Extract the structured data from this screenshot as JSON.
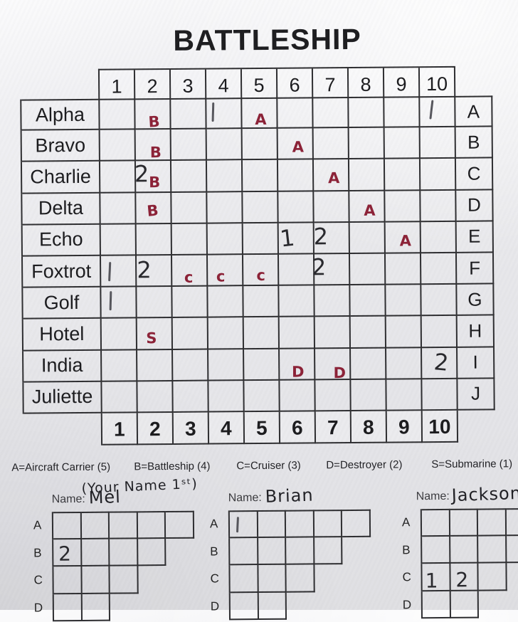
{
  "title": "BATTLESHIP",
  "colors": {
    "line": "#2e2e31",
    "ink_red": "#8c2137",
    "pencil": "#28282d"
  },
  "main_grid": {
    "col_headers": [
      "1",
      "2",
      "3",
      "4",
      "5",
      "6",
      "7",
      "8",
      "9",
      "10"
    ],
    "col_footers": [
      "1",
      "2",
      "3",
      "4",
      "5",
      "6",
      "7",
      "8",
      "9",
      "10"
    ],
    "rows": [
      {
        "label": "Alpha",
        "letter": "A"
      },
      {
        "label": "Bravo",
        "letter": "B"
      },
      {
        "label": "Charlie",
        "letter": "C"
      },
      {
        "label": "Delta",
        "letter": "D"
      },
      {
        "label": "Echo",
        "letter": "E"
      },
      {
        "label": "Foxtrot",
        "letter": "F"
      },
      {
        "label": "Golf",
        "letter": "G"
      },
      {
        "label": "Hotel",
        "letter": "H"
      },
      {
        "label": "India",
        "letter": "I"
      },
      {
        "label": "Juliette",
        "letter": "J"
      }
    ],
    "marks": [
      {
        "row": "A",
        "col": 2,
        "text": "B",
        "ink": "red",
        "fx": 0.56,
        "fy": 0.75,
        "rot": -3
      },
      {
        "row": "A",
        "col": 4,
        "text": "|",
        "ink": "pencil",
        "fx": 0.22,
        "fy": 0.45,
        "rot": 2
      },
      {
        "row": "A",
        "col": 5,
        "text": "A",
        "ink": "red",
        "fx": 0.56,
        "fy": 0.7
      },
      {
        "row": "A",
        "col": 10,
        "text": "|",
        "ink": "pencil",
        "fx": 0.36,
        "fy": 0.44,
        "rot": 7
      },
      {
        "row": "B",
        "col": 2,
        "text": "B",
        "ink": "red",
        "fx": 0.6,
        "fy": 0.72
      },
      {
        "row": "B",
        "col": 6,
        "text": "A",
        "ink": "red",
        "fx": 0.6,
        "fy": 0.58
      },
      {
        "row": "C",
        "col": 2,
        "text": "2",
        "ink": "pencil",
        "fx": 0.2,
        "fy": 0.4
      },
      {
        "row": "C",
        "col": 2,
        "text": "B",
        "ink": "red",
        "fx": 0.56,
        "fy": 0.68
      },
      {
        "row": "C",
        "col": 7,
        "text": "A",
        "ink": "red",
        "fx": 0.6,
        "fy": 0.57
      },
      {
        "row": "D",
        "col": 2,
        "text": "B",
        "ink": "red",
        "fx": 0.5,
        "fy": 0.58,
        "rot": -5
      },
      {
        "row": "D",
        "col": 8,
        "text": "A",
        "ink": "red",
        "fx": 0.6,
        "fy": 0.62
      },
      {
        "row": "E",
        "col": 6,
        "text": "1",
        "ink": "pencil",
        "fx": 0.27,
        "fy": 0.48,
        "rot": -6
      },
      {
        "row": "E",
        "col": 7,
        "text": "2",
        "ink": "pencil",
        "fx": 0.22,
        "fy": 0.44
      },
      {
        "row": "E",
        "col": 9,
        "text": "A",
        "ink": "red",
        "fx": 0.6,
        "fy": 0.6
      },
      {
        "row": "F",
        "col": 1,
        "text": "|",
        "ink": "pencil",
        "fx": 0.27,
        "fy": 0.5
      },
      {
        "row": "F",
        "col": 2,
        "text": "2",
        "ink": "pencil",
        "fx": 0.25,
        "fy": 0.45
      },
      {
        "row": "F",
        "col": 3,
        "text": "c",
        "ink": "red",
        "fx": 0.5,
        "fy": 0.7
      },
      {
        "row": "F",
        "col": 4,
        "text": "c",
        "ink": "red",
        "fx": 0.4,
        "fy": 0.68
      },
      {
        "row": "F",
        "col": 5,
        "text": "c",
        "ink": "red",
        "fx": 0.53,
        "fy": 0.66
      },
      {
        "row": "F",
        "col": 7,
        "text": "2",
        "ink": "pencil",
        "fx": 0.16,
        "fy": 0.4
      },
      {
        "row": "G",
        "col": 1,
        "text": "|",
        "ink": "pencil",
        "fx": 0.3,
        "fy": 0.42,
        "rot": 2
      },
      {
        "row": "H",
        "col": 2,
        "text": "S",
        "ink": "red",
        "fx": 0.44,
        "fy": 0.62
      },
      {
        "row": "I",
        "col": 6,
        "text": "D",
        "ink": "red",
        "fx": 0.55,
        "fy": 0.74
      },
      {
        "row": "I",
        "col": 7,
        "text": "D",
        "ink": "red",
        "fx": 0.72,
        "fy": 0.78
      },
      {
        "row": "I",
        "col": 10,
        "text": "2",
        "ink": "pencil",
        "fx": 0.58,
        "fy": 0.46,
        "rot": 6
      }
    ]
  },
  "legend": [
    "A=Aircraft Carrier (5)",
    "B=Battleship (4)",
    "C=Cruiser (3)",
    "D=Destroyer (2)",
    "S=Submarine (1)"
  ],
  "players_note": "(Your Name 1ˢᵗ)",
  "players": [
    {
      "name_label": "Name:",
      "name": "Mel",
      "row_letters": [
        "A",
        "B",
        "C",
        "D"
      ],
      "row_cells": [
        5,
        4,
        3,
        2
      ],
      "marks": [
        {
          "row": "B",
          "cell": 1,
          "text": "2",
          "fx": 0.45,
          "fy": 0.52
        }
      ]
    },
    {
      "name_label": "Name:",
      "name": "Brian",
      "row_letters": [
        "A",
        "B",
        "C",
        "D"
      ],
      "row_cells": [
        5,
        4,
        3,
        2
      ],
      "marks": [
        {
          "row": "A",
          "cell": 1,
          "text": "|",
          "fx": 0.32,
          "fy": 0.52
        }
      ]
    },
    {
      "name_label": "Name:",
      "name": "Jackson",
      "row_letters": [
        "A",
        "B",
        "C",
        "D"
      ],
      "row_cells": [
        5,
        4,
        3,
        2
      ],
      "marks": [
        {
          "row": "C",
          "cell": 1,
          "text": "1",
          "fx": 0.38,
          "fy": 0.62
        },
        {
          "row": "C",
          "cell": 2,
          "text": "2",
          "fx": 0.46,
          "fy": 0.58
        }
      ]
    }
  ]
}
